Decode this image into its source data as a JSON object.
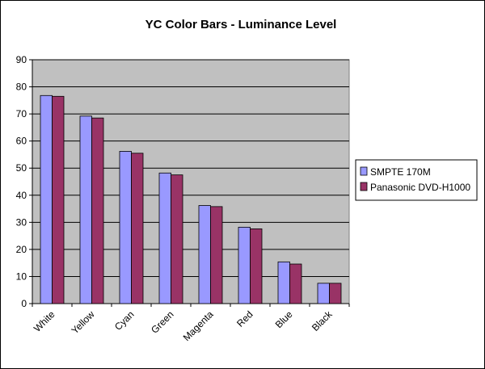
{
  "chart_data": {
    "type": "bar",
    "title": "YC Color Bars - Luminance Level",
    "categories": [
      "White",
      "Yellow",
      "Cyan",
      "Green",
      "Magenta",
      "Red",
      "Blue",
      "Black"
    ],
    "series": [
      {
        "name": "SMPTE 170M",
        "values": [
          76.8,
          69.2,
          56.2,
          48.2,
          36.2,
          28.2,
          15.4,
          7.5
        ],
        "color": "#9999ff"
      },
      {
        "name": "Panasonic DVD-H1000",
        "values": [
          76.5,
          68.5,
          55.5,
          47.5,
          35.8,
          27.6,
          14.6,
          7.5
        ],
        "color": "#993366"
      }
    ],
    "ylim": [
      0,
      90
    ],
    "ytick_step": 10,
    "xlabel": "",
    "ylabel": "",
    "grid": true,
    "plot_background": "#c0c0c0",
    "legend_position": "right"
  }
}
